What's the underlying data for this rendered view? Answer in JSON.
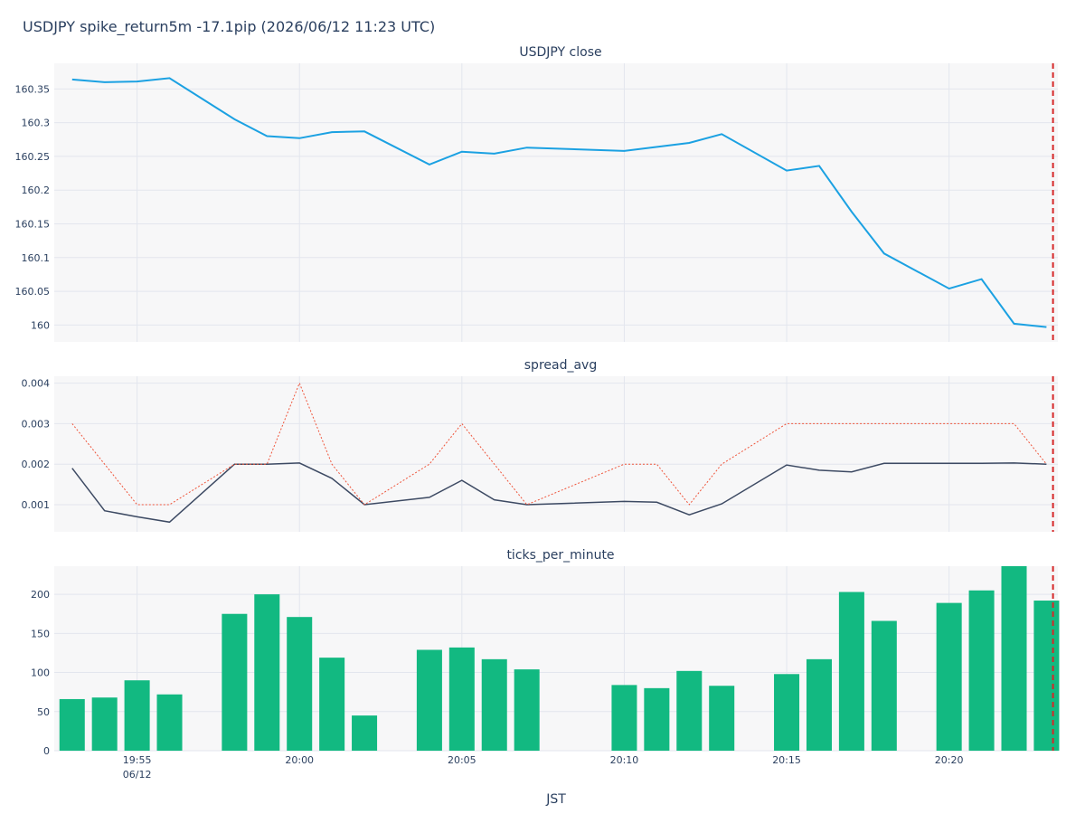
{
  "title": "USDJPY spike_return5m -17.1pip (2026/06/12 11:23 UTC)",
  "x_axis_title": "JST",
  "colors": {
    "close_line": "#1ba1e2",
    "spread_line": "#3d4a63",
    "spread_max": "#ef553b",
    "bars": "#12b981",
    "event_marker": "#d62728",
    "panel_bg": "#f7f7f8",
    "grid": "#e3e6ee"
  },
  "chart_data": [
    {
      "type": "line",
      "title": "USDJPY close",
      "x_unit": "JST time",
      "x": [
        "19:53",
        "19:54",
        "19:55",
        "19:56",
        "19:58",
        "19:59",
        "20:00",
        "20:01",
        "20:02",
        "20:04",
        "20:05",
        "20:06",
        "20:07",
        "20:10",
        "20:12",
        "20:13",
        "20:15",
        "20:16",
        "20:17",
        "20:18",
        "20:20",
        "20:21",
        "20:22",
        "20:23"
      ],
      "series": [
        {
          "values": [
            160.364,
            160.36,
            160.361,
            160.366,
            160.305,
            160.28,
            160.277,
            160.286,
            160.287,
            160.238,
            160.257,
            160.254,
            160.263,
            160.258,
            160.27,
            160.283,
            160.229,
            160.236,
            160.168,
            160.106,
            160.054,
            160.068,
            160.002,
            159.997
          ]
        }
      ],
      "ylim": [
        159.975,
        160.388
      ],
      "yticks": [
        "160",
        "160.05",
        "160.1",
        "160.15",
        "160.2",
        "160.25",
        "160.3",
        "160.35"
      ]
    },
    {
      "type": "line",
      "title": "spread_avg",
      "x_unit": "JST time",
      "series": [
        {
          "style": "solid",
          "x": [
            "19:53",
            "19:54",
            "19:55",
            "19:56",
            "19:58",
            "19:59",
            "20:00",
            "20:01",
            "20:02",
            "20:04",
            "20:05",
            "20:06",
            "20:07",
            "20:10",
            "20:11",
            "20:12",
            "20:13",
            "20:15",
            "20:16",
            "20:17",
            "20:18",
            "20:20",
            "20:21",
            "20:22",
            "20:23"
          ],
          "values": [
            0.0019,
            0.00085,
            0.0007,
            0.00057,
            0.002,
            0.002,
            0.00203,
            0.00165,
            0.001,
            0.00118,
            0.0016,
            0.00112,
            0.001,
            0.00108,
            0.00106,
            0.00075,
            0.00102,
            0.00198,
            0.00185,
            0.00181,
            0.00202,
            0.00202,
            0.00202,
            0.00203,
            0.002
          ]
        },
        {
          "style": "dotted",
          "x": [
            "19:53",
            "19:54",
            "19:55",
            "19:56",
            "19:58",
            "19:59",
            "20:00",
            "20:01",
            "20:02",
            "20:04",
            "20:05",
            "20:06",
            "20:07",
            "20:10",
            "20:11",
            "20:12",
            "20:13",
            "20:15",
            "20:16",
            "20:17",
            "20:18",
            "20:20",
            "20:21",
            "20:22",
            "20:23"
          ],
          "values": [
            0.003,
            0.002,
            0.001,
            0.001,
            0.002,
            0.002,
            0.004,
            0.002,
            0.001,
            0.002,
            0.003,
            0.002,
            0.001,
            0.002,
            0.002,
            0.001,
            0.002,
            0.003,
            0.003,
            0.003,
            0.003,
            0.003,
            0.003,
            0.003,
            0.002
          ]
        }
      ],
      "ylim": [
        0.00033,
        0.00417
      ],
      "yticks": [
        "0.001",
        "0.002",
        "0.003",
        "0.004"
      ]
    },
    {
      "type": "bar",
      "title": "ticks_per_minute",
      "x_unit": "JST time",
      "categories": [
        "19:53",
        "19:54",
        "19:55",
        "19:56",
        "19:58",
        "19:59",
        "20:00",
        "20:01",
        "20:02",
        "20:04",
        "20:05",
        "20:06",
        "20:07",
        "20:10",
        "20:11",
        "20:12",
        "20:13",
        "20:15",
        "20:16",
        "20:17",
        "20:18",
        "20:20",
        "20:21",
        "20:22",
        "20:23"
      ],
      "values": [
        66,
        68,
        90,
        72,
        175,
        200,
        171,
        119,
        45,
        129,
        132,
        117,
        104,
        84,
        80,
        102,
        83,
        98,
        117,
        203,
        166,
        189,
        205,
        236,
        192
      ],
      "ylim": [
        0,
        236
      ],
      "yticks": [
        "0",
        "50",
        "100",
        "150",
        "200"
      ]
    }
  ],
  "x_ticks": [
    "19:55",
    "20:00",
    "20:05",
    "20:10",
    "20:15",
    "20:20"
  ],
  "x_tick_sublabel": "06/12",
  "event_marker_time": "20:23"
}
